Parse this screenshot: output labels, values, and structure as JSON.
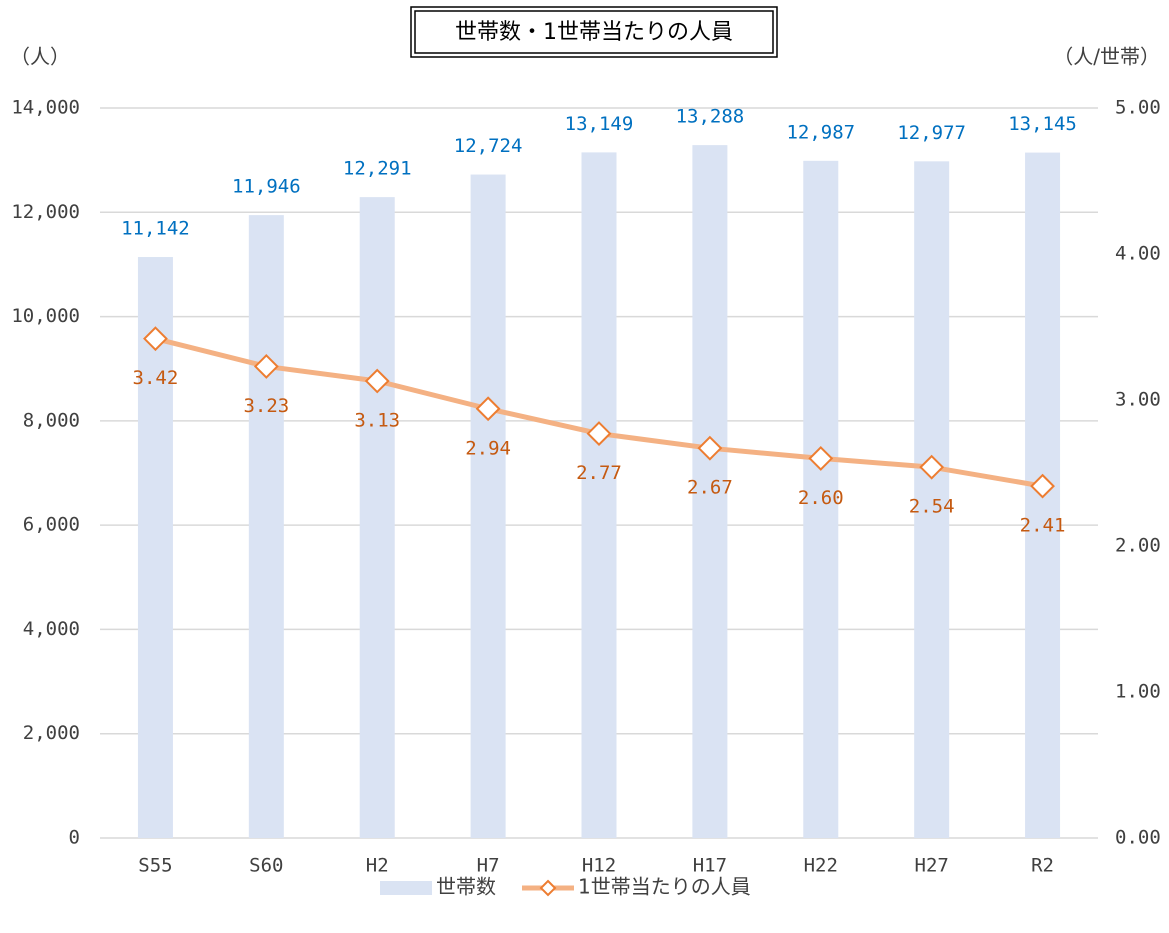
{
  "chart_data": {
    "type": "bar-line",
    "title": "世帯数・1世帯当たりの人員",
    "y_label": "（人）",
    "y2_label": "（人/世帯）",
    "categories": [
      "S55",
      "S60",
      "H2",
      "H7",
      "H12",
      "H17",
      "H22",
      "H27",
      "R2"
    ],
    "series": [
      {
        "name": "世帯数",
        "type": "bar",
        "color": "#dae3f3",
        "label_color": "#0070c0",
        "values": [
          11142,
          11946,
          12291,
          12724,
          13149,
          13288,
          12987,
          12977,
          13145
        ],
        "value_labels": [
          "11,142",
          "11,946",
          "12,291",
          "12,724",
          "13,149",
          "13,288",
          "12,987",
          "12,977",
          "13,145"
        ]
      },
      {
        "name": "1世帯当たりの人員",
        "type": "line",
        "axis": "y2",
        "color": "#f4b183",
        "marker_color": "#ed7d31",
        "label_color": "#c55a11",
        "values": [
          3.42,
          3.23,
          3.13,
          2.94,
          2.77,
          2.67,
          2.6,
          2.54,
          2.41
        ],
        "value_labels": [
          "3.42",
          "3.23",
          "3.13",
          "2.94",
          "2.77",
          "2.67",
          "2.60",
          "2.54",
          "2.41"
        ]
      }
    ],
    "ylim": [
      0,
      14000
    ],
    "yticks": [
      0,
      {
        "value": 2000,
        "label": "2,000"
      },
      {
        "value": 4000,
        "label": "4,000"
      },
      {
        "value": 6000,
        "label": "6,000"
      },
      {
        "value": 8000,
        "label": "8,000"
      },
      {
        "value": 10000,
        "label": "10,000"
      },
      {
        "value": 12000,
        "label": "12,000"
      },
      {
        "value": 14000,
        "label": "14,000"
      }
    ],
    "y2lim": [
      0,
      5
    ],
    "y2ticks": [
      {
        "value": 0,
        "label": "0.00"
      },
      {
        "value": 1,
        "label": "1.00"
      },
      {
        "value": 2,
        "label": "2.00"
      },
      {
        "value": 3,
        "label": "3.00"
      },
      {
        "value": 4,
        "label": "4.00"
      },
      {
        "value": 5,
        "label": "5.00"
      }
    ],
    "grid": true,
    "legend": "bottom"
  }
}
